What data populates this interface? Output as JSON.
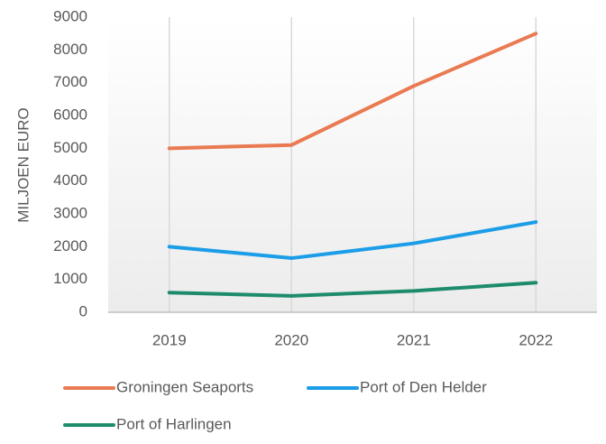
{
  "chart_data": {
    "type": "line",
    "ylabel": "MILJOEN EURO",
    "categories": [
      "2019",
      "2020",
      "2021",
      "2022"
    ],
    "series": [
      {
        "name": "Groningen Seaports",
        "color": "#e97a52",
        "values": [
          5000,
          5100,
          6900,
          8500
        ]
      },
      {
        "name": "Port of Den Helder",
        "color": "#1b9de8",
        "values": [
          2000,
          1650,
          2100,
          2750
        ]
      },
      {
        "name": "Port of Harlingen",
        "color": "#1e8c6c",
        "values": [
          600,
          500,
          650,
          900
        ]
      }
    ],
    "ylim": [
      0,
      9000
    ],
    "yticks": [
      0,
      1000,
      2000,
      3000,
      4000,
      5000,
      6000,
      7000,
      8000,
      9000
    ],
    "grid": "x"
  }
}
